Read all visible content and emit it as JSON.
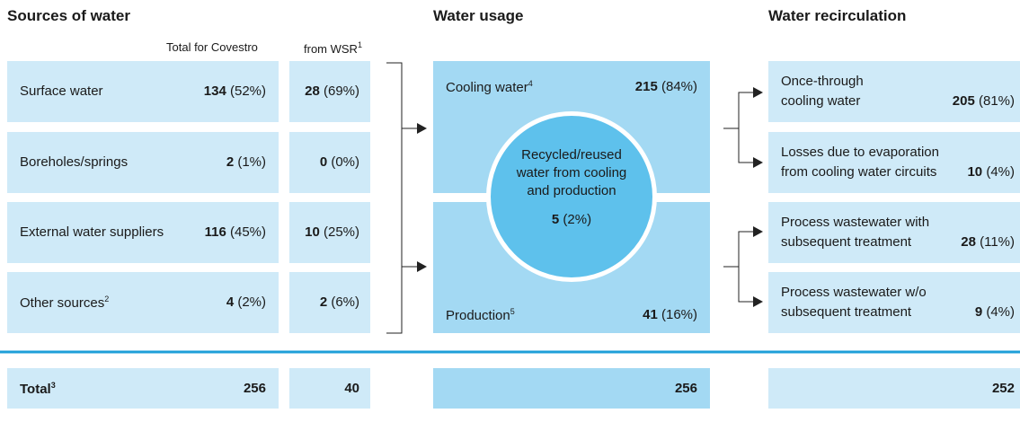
{
  "sources": {
    "title": "Sources of water",
    "headers": {
      "total": "Total for Covestro",
      "wsr": "from WSR",
      "wsr_sup": "1"
    },
    "rows": [
      {
        "label": "Surface water",
        "total": "134",
        "total_share": "(52%)",
        "wsr": "28",
        "wsr_share": "(69%)"
      },
      {
        "label": "Boreholes/springs",
        "total": "2",
        "total_share": "(1%)",
        "wsr": "0",
        "wsr_share": "(0%)"
      },
      {
        "label": "External water suppliers",
        "total": "116",
        "total_share": "(45%)",
        "wsr": "10",
        "wsr_share": "(25%)"
      },
      {
        "label": "Other sources",
        "sup": "2",
        "total": "4",
        "total_share": "(2%)",
        "wsr": "2",
        "wsr_share": "(6%)"
      }
    ],
    "total": {
      "label": "Total",
      "sup": "3",
      "total": "256",
      "wsr": "40"
    }
  },
  "usage": {
    "title": "Water usage",
    "items": [
      {
        "label": "Cooling water",
        "sup": "4",
        "value": "215",
        "share": "(84%)"
      },
      {
        "label": "Production",
        "sup": "5",
        "value": "41",
        "share": "(16%)"
      }
    ],
    "recycled": {
      "lines": [
        "Recycled/reused",
        "water from cooling",
        "and production"
      ],
      "value": "5",
      "share": "(2%)"
    },
    "total": "256"
  },
  "recirculation": {
    "title": "Water recirculation",
    "items": [
      {
        "lines": [
          "Once-through",
          "cooling water"
        ],
        "value": "205",
        "share": "(81%)"
      },
      {
        "lines": [
          "Losses due to evaporation",
          "from cooling water circuits"
        ],
        "value": "10",
        "share": "(4%)"
      },
      {
        "lines": [
          "Process wastewater with",
          "subsequent treatment"
        ],
        "value": "28",
        "share": "(11%)"
      },
      {
        "lines": [
          "Process wastewater w/o",
          "subsequent treatment"
        ],
        "value": "9",
        "share": "(4%)"
      }
    ],
    "total": "252"
  }
}
